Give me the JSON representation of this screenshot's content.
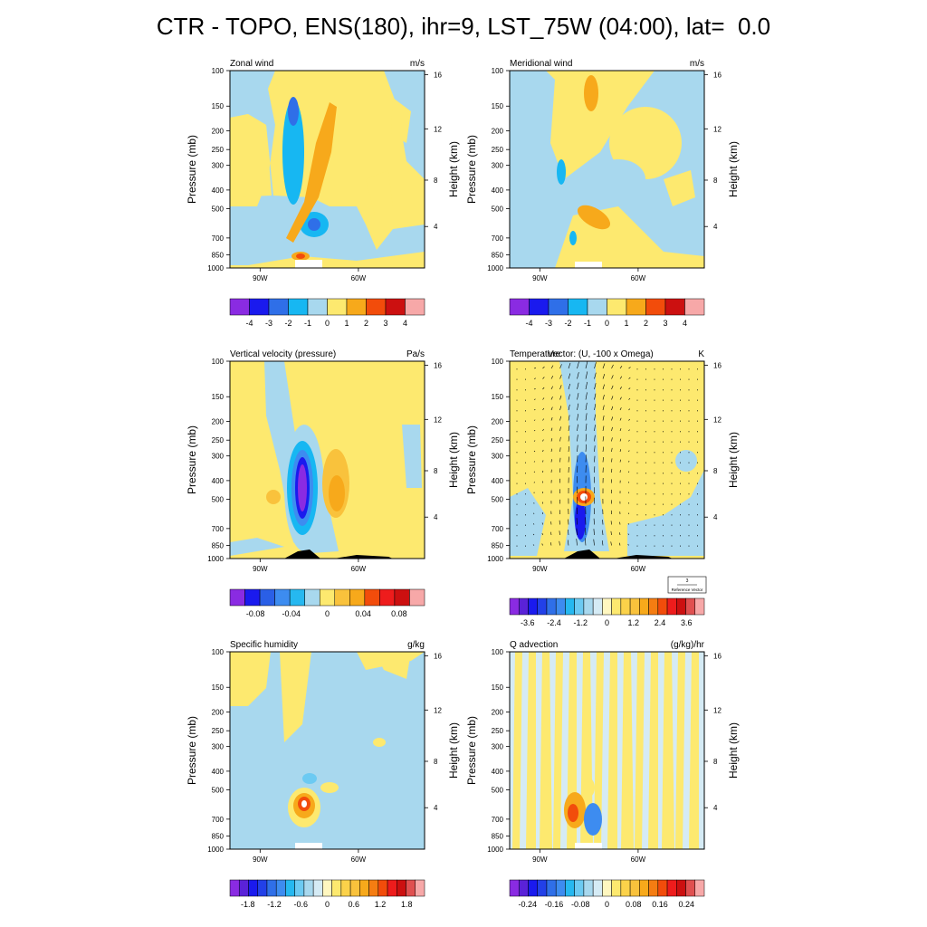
{
  "title": "CTR - TOPO, ENS(180), ihr=9, LST_75W (04:00), lat=  0.0",
  "axes": {
    "pressure_label": "Pressure (mb)",
    "height_label": "Height (km)",
    "pressure_ticks": [
      "100",
      "150",
      "200",
      "250",
      "300",
      "400",
      "500",
      "700",
      "850",
      "1000"
    ],
    "height_ticks": [
      "16",
      "12",
      "8",
      "4"
    ],
    "lon_ticks": [
      "90W",
      "60W"
    ]
  },
  "colors": {
    "background_fill": "#fde96f",
    "terrain": "#000000",
    "white": "#ffffff"
  },
  "chart_data": [
    {
      "type": "heatmap",
      "title": "Zonal wind",
      "units": "m/s",
      "colorbar": {
        "labels": [
          "-4",
          "-3",
          "-2",
          "-1",
          "0",
          "1",
          "2",
          "3",
          "4"
        ],
        "colors": [
          "#8a2be2",
          "#1a1aee",
          "#2f6fe8",
          "#17b7f2",
          "#a8d8ee",
          "#fde96f",
          "#f7a91b",
          "#f24c0b",
          "#cc1010",
          "#f7a8a8"
        ]
      }
    },
    {
      "type": "heatmap",
      "title": "Meridional wind",
      "units": "m/s",
      "colorbar": {
        "labels": [
          "-4",
          "-3",
          "-2",
          "-1",
          "0",
          "1",
          "2",
          "3",
          "4"
        ],
        "colors": [
          "#8a2be2",
          "#1a1aee",
          "#2f6fe8",
          "#17b7f2",
          "#a8d8ee",
          "#fde96f",
          "#f7a91b",
          "#f24c0b",
          "#cc1010",
          "#f7a8a8"
        ]
      }
    },
    {
      "type": "heatmap",
      "title": "Vertical velocity (pressure)",
      "units": "Pa/s",
      "colorbar": {
        "labels": [
          "-0.08",
          "-0.04",
          "0",
          "0.04",
          "0.08"
        ],
        "colors": [
          "#8a2be2",
          "#1a1aee",
          "#2a5fe6",
          "#3d8cf0",
          "#26b8f0",
          "#a8d8ee",
          "#fde96f",
          "#f9c23c",
          "#f7a91b",
          "#f24c0b",
          "#ee1c1c",
          "#cc1010",
          "#f7a8a8"
        ]
      }
    },
    {
      "type": "heatmap",
      "title": "Temperature",
      "overlay_title": "Vector: (U, -100 x Omega)",
      "units": "K",
      "reference_vector": {
        "value": "3",
        "label": "Reference Vector"
      },
      "colorbar": {
        "labels": [
          "-3.6",
          "-2.4",
          "-1.2",
          "0",
          "1.2",
          "2.4",
          "3.6"
        ],
        "colors": [
          "#8a2be2",
          "#5a22d8",
          "#1a1aee",
          "#2240e8",
          "#2f6fe8",
          "#3d8cf0",
          "#26b8f0",
          "#6ccaf2",
          "#a8d8ee",
          "#d5ebf5",
          "#fff7c0",
          "#fde96f",
          "#fbd24a",
          "#f9c23c",
          "#f7a91b",
          "#f57d12",
          "#f24c0b",
          "#ee1c1c",
          "#cc1010",
          "#e05050",
          "#f7a8a8"
        ]
      }
    },
    {
      "type": "heatmap",
      "title": "Specific humidity",
      "units": "g/kg",
      "colorbar": {
        "labels": [
          "-1.8",
          "-1.2",
          "-0.6",
          "0",
          "0.6",
          "1.2",
          "1.8"
        ],
        "colors": [
          "#8a2be2",
          "#5a22d8",
          "#1a1aee",
          "#2240e8",
          "#2f6fe8",
          "#3d8cf0",
          "#26b8f0",
          "#6ccaf2",
          "#a8d8ee",
          "#d5ebf5",
          "#fff7c0",
          "#fde96f",
          "#fbd24a",
          "#f9c23c",
          "#f7a91b",
          "#f57d12",
          "#f24c0b",
          "#ee1c1c",
          "#cc1010",
          "#e05050",
          "#f7a8a8"
        ]
      }
    },
    {
      "type": "heatmap",
      "title": "Q advection",
      "units": "(g/kg)/hr",
      "colorbar": {
        "labels": [
          "-0.24",
          "-0.16",
          "-0.08",
          "0",
          "0.08",
          "0.16",
          "0.24"
        ],
        "colors": [
          "#8a2be2",
          "#5a22d8",
          "#1a1aee",
          "#2240e8",
          "#2f6fe8",
          "#3d8cf0",
          "#26b8f0",
          "#6ccaf2",
          "#a8d8ee",
          "#d5ebf5",
          "#fff7c0",
          "#fde96f",
          "#fbd24a",
          "#f9c23c",
          "#f7a91b",
          "#f57d12",
          "#f24c0b",
          "#ee1c1c",
          "#cc1010",
          "#e05050",
          "#f7a8a8"
        ]
      }
    }
  ]
}
